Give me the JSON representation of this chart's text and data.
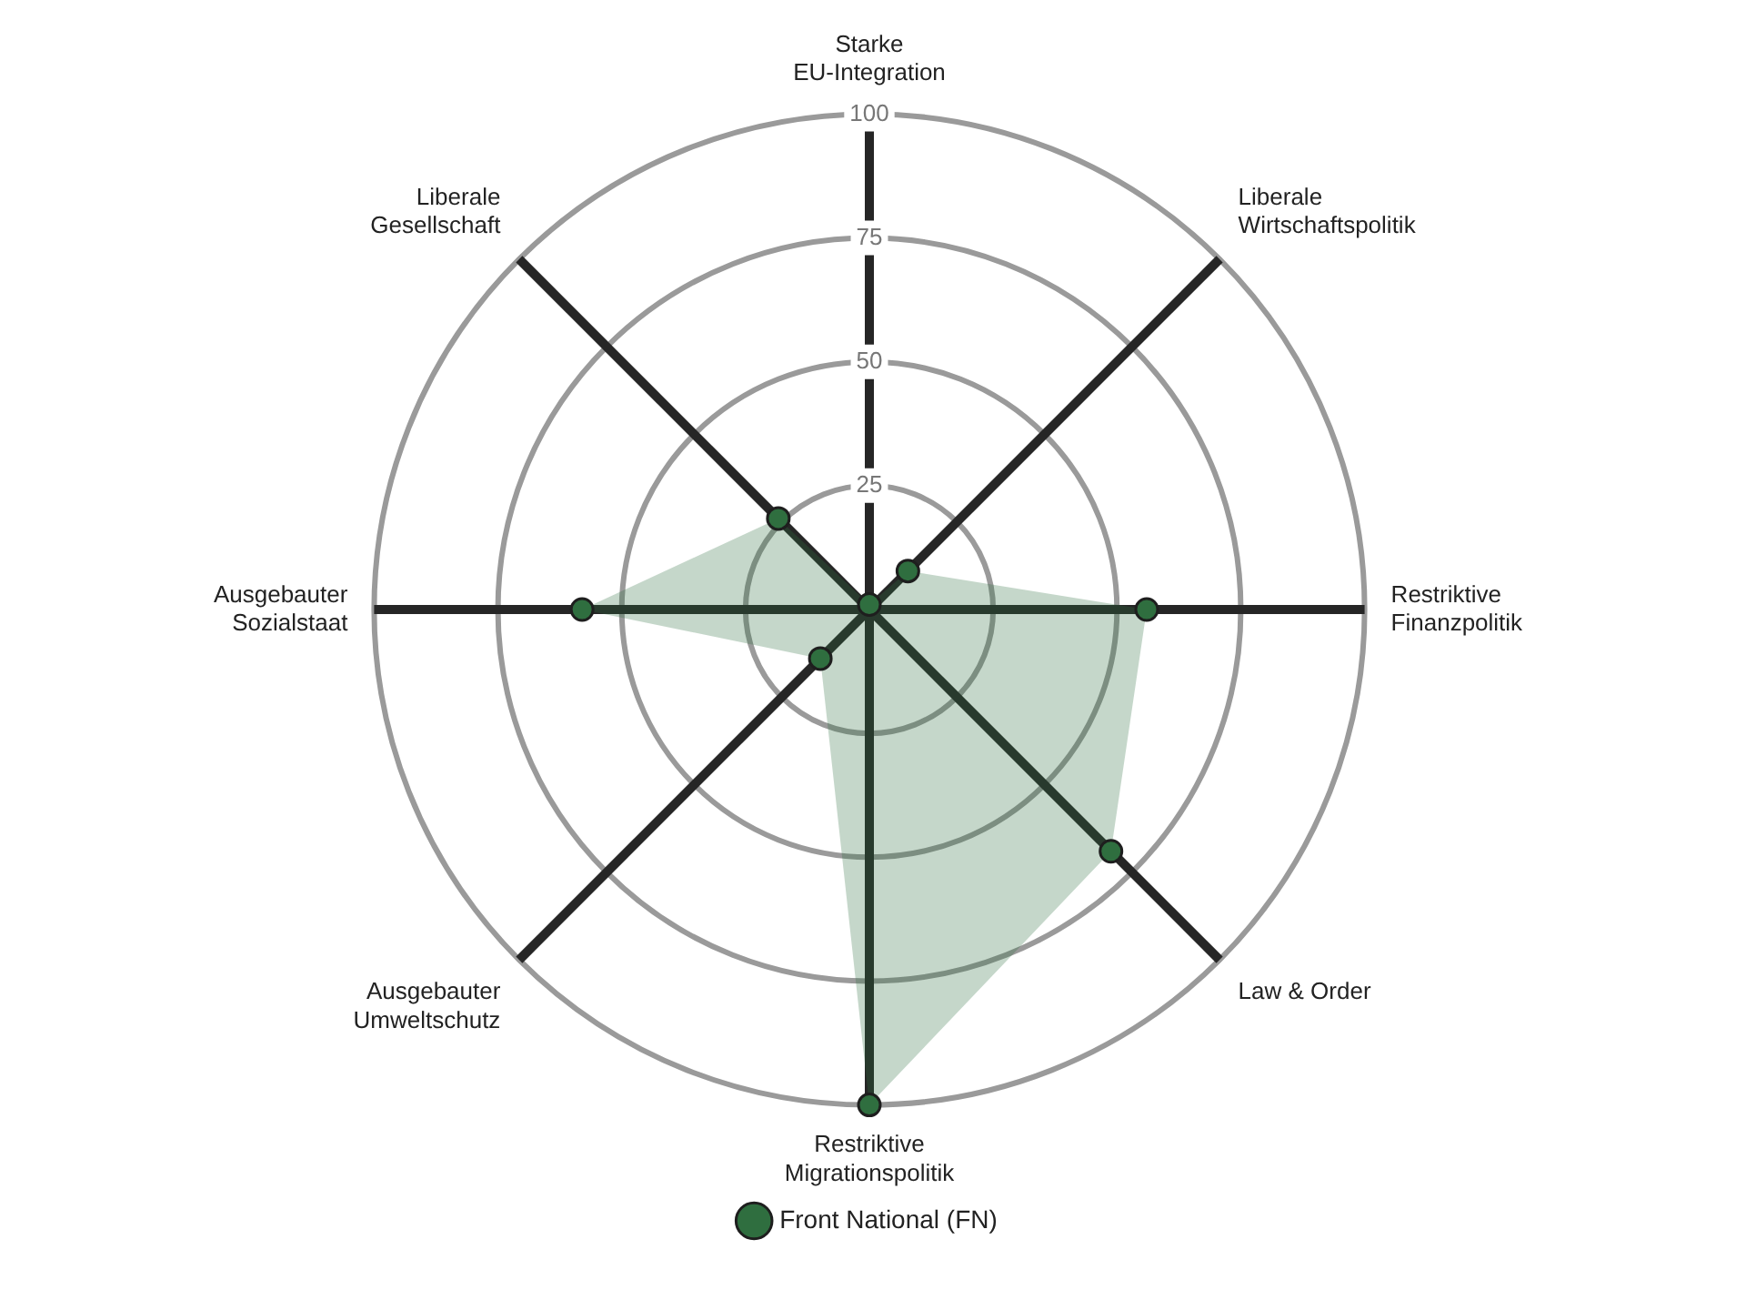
{
  "chart_data": {
    "type": "radar",
    "categories": [
      "Starke\nEU-Integration",
      "Liberale\nWirtschaftspolitik",
      "Restriktive\nFinanzpolitik",
      "Law & Order",
      "Restriktive\nMigrationspolitik",
      "Ausgebauter\nUmweltschutz",
      "Ausgebauter\nSozialstaat",
      "Liberale\nGesellschaft"
    ],
    "series": [
      {
        "name": "Front National (FN)",
        "color": "#2f6e3f",
        "values": [
          1,
          11,
          56,
          69,
          100,
          14,
          58,
          26
        ]
      }
    ],
    "ylim": [
      0,
      100
    ],
    "yticks": [
      25,
      50,
      75,
      100
    ],
    "grid": true,
    "legend": "bottom",
    "marker": "circle"
  }
}
